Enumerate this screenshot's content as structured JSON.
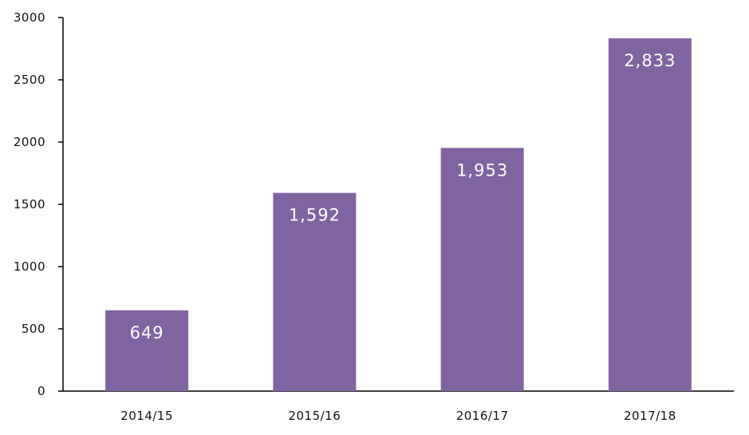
{
  "chart_data": {
    "type": "bar",
    "categories": [
      "2014/15",
      "2015/16",
      "2016/17",
      "2017/18"
    ],
    "values": [
      649,
      1592,
      1953,
      2833
    ],
    "value_labels": [
      "649",
      "1,592",
      "1,953",
      "2,833"
    ],
    "title": "",
    "xlabel": "",
    "ylabel": "",
    "ylim": [
      0,
      3000
    ],
    "yticks": [
      0,
      500,
      1000,
      1500,
      2000,
      2500,
      3000
    ],
    "ytick_labels": [
      "0",
      "500",
      "1000",
      "1500",
      "2000",
      "2500",
      "3000"
    ],
    "grid": false,
    "legend": "none",
    "bar_color": "#8064a2",
    "axis_color": "#000000"
  }
}
